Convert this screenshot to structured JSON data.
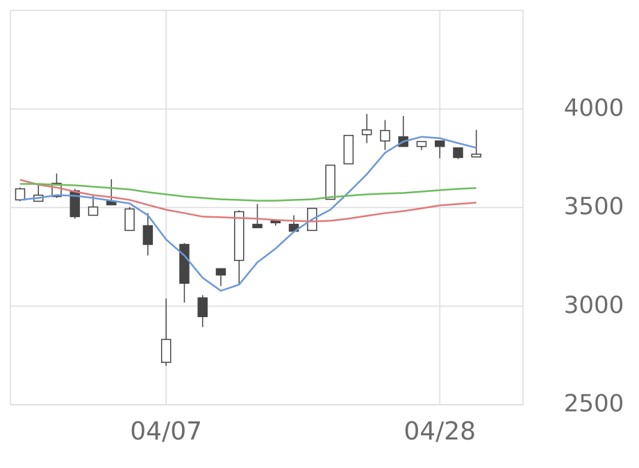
{
  "chart_data": {
    "type": "candlestick",
    "categories": [
      null,
      null,
      null,
      null,
      null,
      null,
      null,
      null,
      "04/07",
      null,
      null,
      null,
      null,
      null,
      null,
      null,
      null,
      null,
      null,
      null,
      null,
      null,
      null,
      "04/28",
      null,
      null
    ],
    "open": [
      3539,
      3532,
      3556,
      3585,
      3461,
      3532,
      3384,
      3408,
      2715,
      3313,
      3042,
      3190,
      3232,
      3415,
      3433,
      3415,
      3384,
      3542,
      3722,
      3870,
      3838,
      3859,
      3810,
      3838,
      3803,
      3757
    ],
    "high": [
      3602,
      3623,
      3673,
      3595,
      3560,
      3644,
      3503,
      3472,
      3039,
      3320,
      3056,
      3190,
      3486,
      3518,
      3433,
      3461,
      3496,
      3715,
      3866,
      3975,
      3944,
      3965,
      3835,
      3838,
      3803,
      3894
    ],
    "low": [
      3532,
      3532,
      3549,
      3444,
      3461,
      3514,
      3384,
      3257,
      2697,
      3018,
      2894,
      3102,
      3109,
      3398,
      3408,
      3380,
      3384,
      3542,
      3722,
      3827,
      3792,
      3810,
      3792,
      3750,
      3746,
      3757
    ],
    "close": [
      3595,
      3563,
      3623,
      3454,
      3503,
      3514,
      3493,
      3313,
      2831,
      3116,
      2947,
      3158,
      3479,
      3398,
      3423,
      3380,
      3496,
      3715,
      3866,
      3894,
      3891,
      3810,
      3835,
      3810,
      3754,
      3771
    ],
    "up_color": "#ffffff",
    "down_color": "#444444",
    "wick_color": "#444444",
    "lines": [
      {
        "color": "#6a98d8",
        "values": [
          3539,
          3549,
          3563,
          3560,
          3549,
          3535,
          3521,
          3461,
          3338,
          3257,
          3144,
          3078,
          3109,
          3222,
          3292,
          3377,
          3440,
          3489,
          3577,
          3669,
          3778,
          3835,
          3859,
          3852,
          3827,
          3803
        ]
      },
      {
        "color": "#e07a7a",
        "values": [
          3641,
          3616,
          3602,
          3581,
          3563,
          3553,
          3539,
          3514,
          3489,
          3472,
          3454,
          3451,
          3447,
          3444,
          3437,
          3433,
          3430,
          3433,
          3444,
          3458,
          3472,
          3482,
          3496,
          3511,
          3518,
          3525
        ]
      },
      {
        "color": "#6cbd5e",
        "values": [
          3620,
          3620,
          3616,
          3613,
          3606,
          3599,
          3592,
          3578,
          3567,
          3556,
          3549,
          3542,
          3539,
          3535,
          3535,
          3539,
          3542,
          3553,
          3560,
          3567,
          3571,
          3574,
          3581,
          3588,
          3595,
          3599
        ]
      }
    ],
    "ylim": [
      2500,
      4500
    ],
    "yticks": [
      2500,
      3000,
      3500,
      4000
    ],
    "y_axis_side": "right",
    "grid": true
  }
}
